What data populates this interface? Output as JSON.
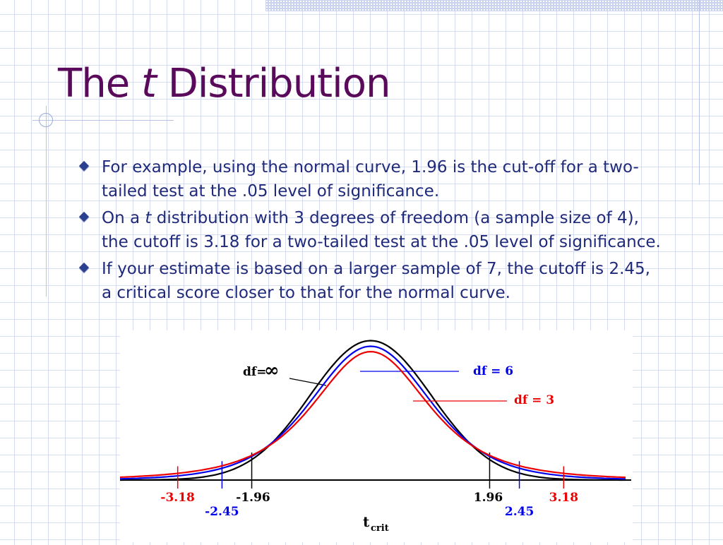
{
  "slide": {
    "title_prefix": "The",
    "title_italic": "t",
    "title_suffix": "Distribution"
  },
  "bullets": [
    {
      "parts": [
        "For example, using the normal curve, 1.96 is the cut-off for a two-tailed test at the .05 level of significance."
      ]
    },
    {
      "parts": [
        "On a ",
        "t",
        " distribution with 3 degrees of freedom (a sample size of 4), the cutoff is 3.18 for a two-tailed test at the .05 level of significance."
      ]
    },
    {
      "parts": [
        "If your estimate is based on a larger sample of 7, the cutoff is 2.45, a critical score closer to that for the normal curve."
      ]
    }
  ],
  "chart_data": {
    "type": "line",
    "xlabel": "t",
    "xlabel_subscript": "crit",
    "xlim": [
      -4.2,
      4.2
    ],
    "series": [
      {
        "name": "df=",
        "name_symbol": "∞",
        "color": "#000000",
        "df": "inf",
        "critical": [
          -1.96,
          1.96
        ],
        "critical_labels": [
          "-1.96",
          "1.96"
        ]
      },
      {
        "name": "df = 6",
        "color": "#0000ee",
        "df": 6,
        "critical": [
          -2.45,
          2.45
        ],
        "critical_labels": [
          "-2.45",
          "2.45"
        ]
      },
      {
        "name": "df = 3",
        "color": "#ee0000",
        "df": 3,
        "critical": [
          -3.18,
          3.18
        ],
        "critical_labels": [
          "-3.18",
          "3.18"
        ]
      }
    ]
  }
}
